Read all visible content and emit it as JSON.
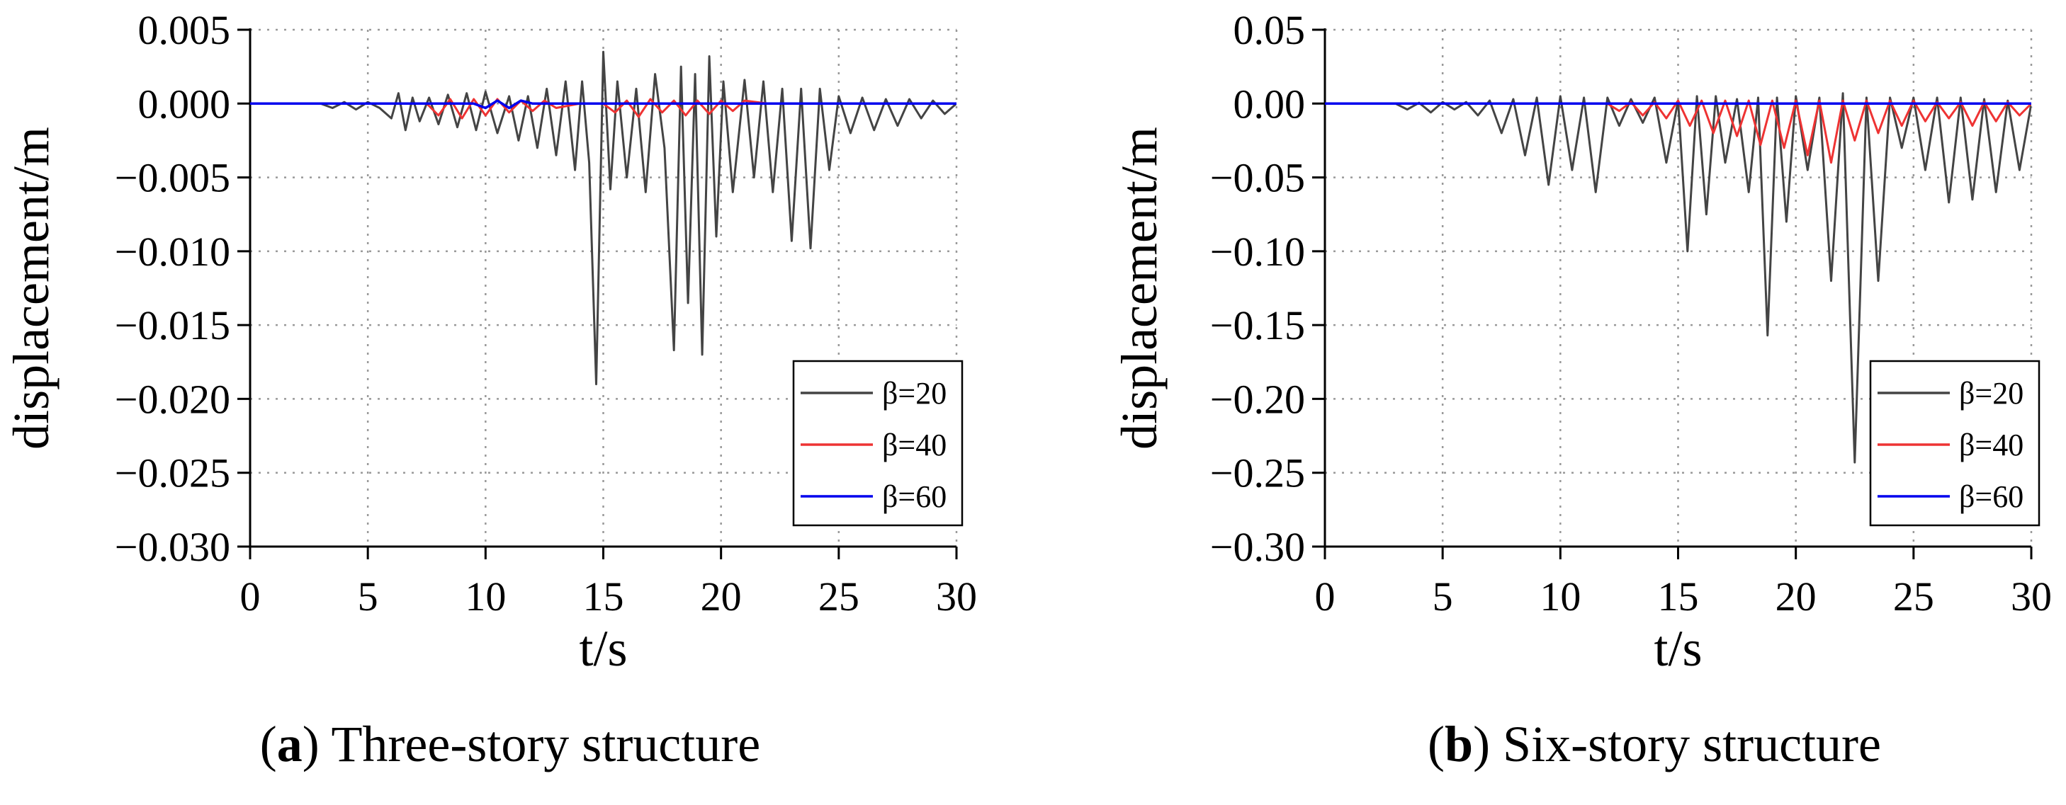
{
  "chart_data": [
    {
      "type": "line",
      "panel_letter": "a",
      "caption": "Three-story structure",
      "xlabel": "t/s",
      "ylabel": "displacement/m",
      "xlim": [
        0,
        30
      ],
      "ylim": [
        -0.03,
        0.005
      ],
      "x_ticks": [
        "0",
        "5",
        "10",
        "15",
        "20",
        "25",
        "30"
      ],
      "y_ticks": [
        "0.005",
        "0.000",
        "−0.005",
        "−0.010",
        "−0.015",
        "−0.020",
        "−0.025",
        "−0.030"
      ],
      "y_tick_values": [
        0.005,
        0.0,
        -0.005,
        -0.01,
        -0.015,
        -0.02,
        -0.025,
        -0.03
      ],
      "x_tick_values": [
        0,
        5,
        10,
        15,
        20,
        25,
        30
      ],
      "grid": true,
      "legend_position": "bottom-right",
      "series": [
        {
          "name": "β=20",
          "color": "#444444",
          "x": [
            0,
            3.0,
            3.5,
            4.0,
            4.5,
            5.0,
            5.5,
            6.0,
            6.3,
            6.6,
            6.9,
            7.2,
            7.6,
            8.0,
            8.4,
            8.8,
            9.2,
            9.6,
            10.0,
            10.5,
            11.0,
            11.4,
            11.8,
            12.2,
            12.6,
            13.0,
            13.4,
            13.8,
            14.1,
            14.4,
            14.7,
            15.0,
            15.3,
            15.6,
            16.0,
            16.4,
            16.8,
            17.2,
            17.6,
            18.0,
            18.3,
            18.6,
            18.9,
            19.2,
            19.5,
            19.8,
            20.1,
            20.5,
            21.0,
            21.4,
            21.8,
            22.2,
            22.6,
            23.0,
            23.4,
            23.8,
            24.2,
            24.6,
            25.0,
            25.5,
            26.0,
            26.5,
            27.0,
            27.5,
            28.0,
            28.5,
            29.0,
            29.5,
            30.0
          ],
          "y": [
            0,
            0,
            -0.0003,
            0.0001,
            -0.0004,
            0.0001,
            -0.0003,
            -0.001,
            0.0007,
            -0.0018,
            0.0004,
            -0.0012,
            0.0004,
            -0.0014,
            0.0006,
            -0.0016,
            0.0007,
            -0.0018,
            0.0008,
            -0.002,
            0.0005,
            -0.0025,
            0.0005,
            -0.003,
            0.001,
            -0.0035,
            0.0015,
            -0.0045,
            0.0015,
            -0.004,
            -0.019,
            0.0035,
            -0.0058,
            0.0015,
            -0.005,
            0.001,
            -0.006,
            0.002,
            -0.003,
            -0.0167,
            0.0025,
            -0.0135,
            0.002,
            -0.017,
            0.0032,
            -0.009,
            0.0015,
            -0.006,
            0.0016,
            -0.005,
            0.0015,
            -0.006,
            0.001,
            -0.0093,
            0.001,
            -0.0098,
            0.001,
            -0.0045,
            0.0005,
            -0.002,
            0.0004,
            -0.0018,
            0.0003,
            -0.0015,
            0.0003,
            -0.001,
            0.0002,
            -0.0007,
            0
          ]
        },
        {
          "name": "β=40",
          "color": "#ee3333",
          "x": [
            0,
            7.5,
            8.0,
            8.5,
            9.0,
            9.5,
            10.0,
            10.5,
            11.0,
            11.5,
            12.0,
            12.5,
            13.0,
            14.0,
            15.0,
            15.5,
            16.0,
            16.5,
            17.0,
            17.5,
            18.0,
            18.5,
            19.0,
            19.5,
            20.0,
            20.5,
            21.0,
            22.0,
            30.0
          ],
          "y": [
            0,
            0,
            -0.0008,
            0.0003,
            -0.001,
            0.0003,
            -0.0008,
            0.0003,
            -0.0006,
            0.0002,
            -0.0005,
            0.0002,
            -0.0003,
            0,
            0,
            -0.0006,
            0.0002,
            -0.0009,
            0.0003,
            -0.0006,
            0.0002,
            -0.0008,
            0.0002,
            -0.0007,
            0.0002,
            -0.0005,
            0.0002,
            0,
            0
          ]
        },
        {
          "name": "β=60",
          "color": "#0000ee",
          "x": [
            0,
            9.5,
            10.0,
            10.5,
            11.0,
            11.5,
            12.0,
            30.0
          ],
          "y": [
            0,
            0,
            -0.0003,
            0.0002,
            -0.0003,
            0.0002,
            0,
            0
          ]
        }
      ]
    },
    {
      "type": "line",
      "panel_letter": "b",
      "caption": "Six-story structure",
      "xlabel": "t/s",
      "ylabel": "displacement/m",
      "xlim": [
        0,
        30
      ],
      "ylim": [
        -0.3,
        0.05
      ],
      "x_ticks": [
        "0",
        "5",
        "10",
        "15",
        "20",
        "25",
        "30"
      ],
      "y_ticks": [
        "0.05",
        "0.00",
        "−0.05",
        "−0.10",
        "−0.15",
        "−0.20",
        "−0.25",
        "−0.30"
      ],
      "y_tick_values": [
        0.05,
        0.0,
        -0.05,
        -0.1,
        -0.15,
        -0.2,
        -0.25,
        -0.3
      ],
      "x_tick_values": [
        0,
        5,
        10,
        15,
        20,
        25,
        30
      ],
      "grid": true,
      "legend_position": "bottom-right",
      "series": [
        {
          "name": "β=20",
          "color": "#444444",
          "x": [
            0,
            3.0,
            3.5,
            4.0,
            4.5,
            5.0,
            5.5,
            6.0,
            6.5,
            7.0,
            7.5,
            8.0,
            8.5,
            9.0,
            9.5,
            10.0,
            10.5,
            11.0,
            11.5,
            12.0,
            12.5,
            13.0,
            13.5,
            14.0,
            14.5,
            15.0,
            15.4,
            15.8,
            16.2,
            16.6,
            17.0,
            17.5,
            18.0,
            18.4,
            18.8,
            19.2,
            19.6,
            20.0,
            20.5,
            21.0,
            21.5,
            22.0,
            22.5,
            23.0,
            23.5,
            24.0,
            24.5,
            25.0,
            25.5,
            26.0,
            26.5,
            27.0,
            27.5,
            28.0,
            28.5,
            29.0,
            29.5,
            30.0
          ],
          "y": [
            0,
            0,
            -0.004,
            0.0005,
            -0.006,
            0.001,
            -0.004,
            0.001,
            -0.008,
            0.002,
            -0.02,
            0.003,
            -0.035,
            0.004,
            -0.055,
            0.005,
            -0.045,
            0.004,
            -0.06,
            0.004,
            -0.015,
            0.003,
            -0.013,
            0.004,
            -0.04,
            0.002,
            -0.1,
            0.005,
            -0.075,
            0.005,
            -0.04,
            0.003,
            -0.06,
            0.004,
            -0.157,
            0.004,
            -0.08,
            0.005,
            -0.045,
            0.004,
            -0.12,
            0.007,
            -0.243,
            0.004,
            -0.12,
            0.004,
            -0.03,
            0.004,
            -0.045,
            0.004,
            -0.067,
            0.004,
            -0.065,
            0.003,
            -0.06,
            0.002,
            -0.045,
            0
          ]
        },
        {
          "name": "β=40",
          "color": "#ee3333",
          "x": [
            0,
            12.0,
            12.5,
            13.0,
            13.5,
            14.0,
            14.5,
            15.0,
            15.5,
            16.0,
            16.5,
            17.0,
            17.5,
            18.0,
            18.5,
            19.0,
            19.5,
            20.0,
            20.5,
            21.0,
            21.5,
            22.0,
            22.5,
            23.0,
            23.5,
            24.0,
            24.5,
            25.0,
            25.5,
            26.0,
            26.5,
            27.0,
            27.5,
            28.0,
            28.5,
            29.0,
            29.5,
            30.0
          ],
          "y": [
            0,
            0,
            -0.005,
            0.001,
            -0.008,
            0.001,
            -0.01,
            0.002,
            -0.015,
            0.002,
            -0.02,
            0.002,
            -0.022,
            0.002,
            -0.028,
            0.002,
            -0.03,
            0.002,
            -0.035,
            0.002,
            -0.04,
            0.002,
            -0.025,
            0.002,
            -0.02,
            0.002,
            -0.015,
            0.002,
            -0.012,
            0.001,
            -0.01,
            0.001,
            -0.015,
            0.001,
            -0.012,
            0.001,
            -0.008,
            0
          ]
        },
        {
          "name": "β=60",
          "color": "#0000ee",
          "x": [
            0,
            30
          ],
          "y": [
            0,
            0
          ]
        }
      ]
    }
  ]
}
